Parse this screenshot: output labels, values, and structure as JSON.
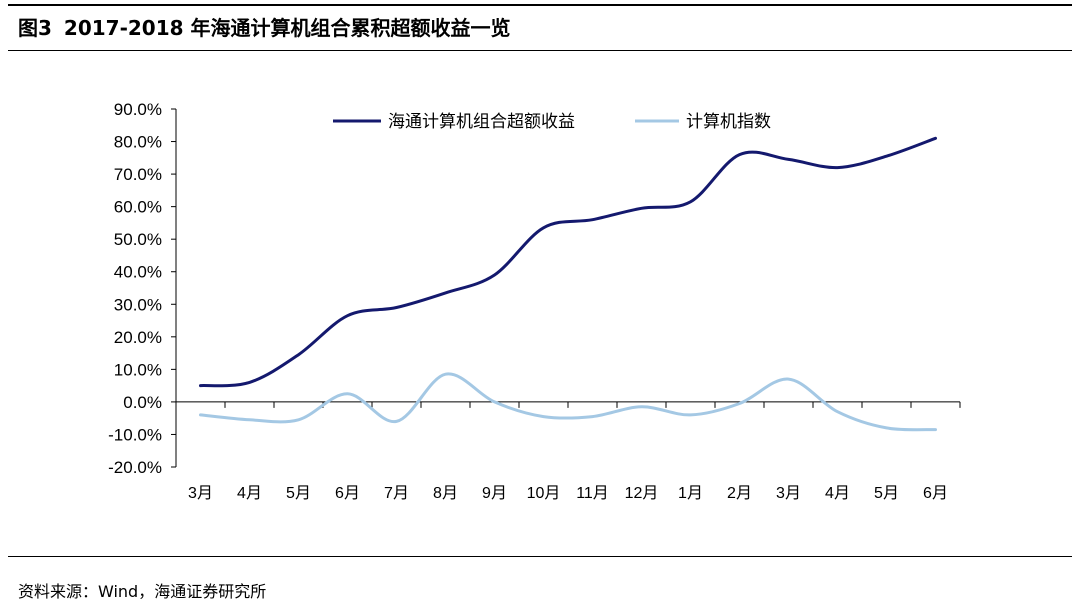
{
  "figure": {
    "number": "图3",
    "title": "2017-2018 年海通计算机组合累积超额收益一览",
    "source": "资料来源：Wind，海通证券研究所"
  },
  "chart_data": {
    "type": "line",
    "categories": [
      "3月",
      "4月",
      "5月",
      "6月",
      "7月",
      "8月",
      "9月",
      "10月",
      "11月",
      "12月",
      "1月",
      "2月",
      "3月",
      "4月",
      "5月",
      "6月"
    ],
    "series": [
      {
        "name": "海通计算机组合超额收益",
        "color": "#14196e",
        "values": [
          5.0,
          6.0,
          14.5,
          26.5,
          29.0,
          33.5,
          39.0,
          53.5,
          56.0,
          59.5,
          61.5,
          76.0,
          74.5,
          72.0,
          75.5,
          81.0
        ]
      },
      {
        "name": "计算机指数",
        "color": "#a4c8e4",
        "values": [
          -4.0,
          -5.5,
          -5.5,
          2.5,
          -6.0,
          8.5,
          0.0,
          -4.5,
          -4.5,
          -1.5,
          -4.0,
          -0.5,
          7.0,
          -3.0,
          -8.0,
          -8.5
        ]
      }
    ],
    "yticks": [
      "90.0%",
      "80.0%",
      "70.0%",
      "60.0%",
      "50.0%",
      "40.0%",
      "30.0%",
      "20.0%",
      "10.0%",
      "0.0%",
      "-10.0%",
      "-20.0%"
    ],
    "ylim": [
      -20,
      90
    ],
    "legend_position": "top",
    "grid": false
  }
}
